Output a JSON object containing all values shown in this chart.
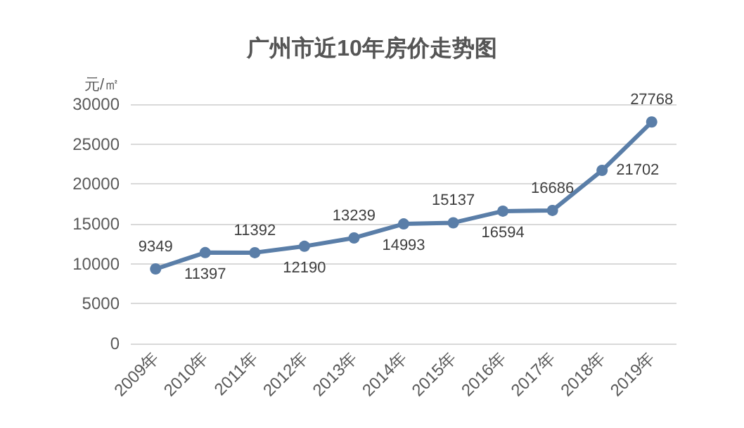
{
  "chart_data": {
    "type": "line",
    "title": "广州市近10年房价走势图",
    "ylabel": "元/㎡",
    "categories": [
      "2009年",
      "2010年",
      "2011年",
      "2012年",
      "2013年",
      "2014年",
      "2015年",
      "2016年",
      "2017年",
      "2018年",
      "2019年"
    ],
    "series": [
      {
        "color": "#5a7ea8",
        "values": [
          9349,
          11397,
          11392,
          12190,
          13239,
          14993,
          15137,
          16594,
          16686,
          21702,
          27768
        ]
      }
    ],
    "ylim": [
      0,
      30000
    ],
    "yticks": [
      0,
      5000,
      10000,
      15000,
      20000,
      25000,
      30000
    ],
    "grid": "y",
    "marker": "circle",
    "line_style": "solid",
    "data_labels": true
  }
}
